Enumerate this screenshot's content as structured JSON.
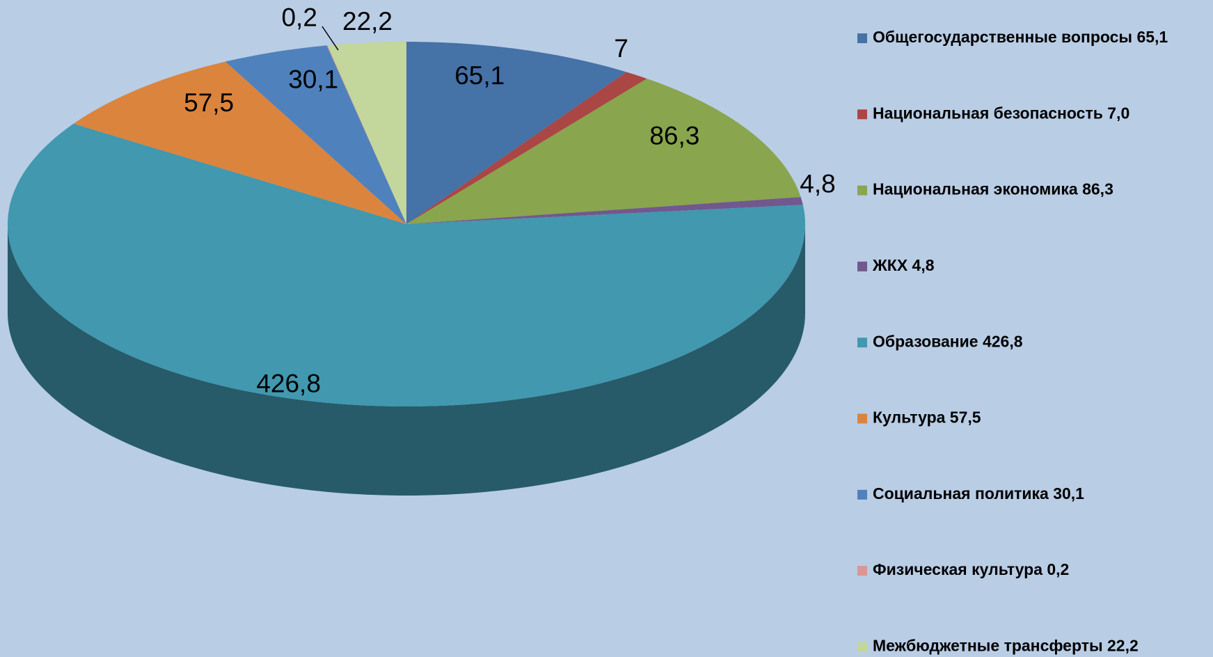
{
  "chart_data": {
    "type": "pie",
    "categories": [
      "Общегосударственные вопросы 65,1",
      "Национальная безопасность 7,0",
      "Национальная экономика 86,3",
      "ЖКХ 4,8",
      "Образование 426,8",
      "Культура 57,5",
      "Социальная политика 30,1",
      "Физическая культура 0,2",
      "Межбюджетные трансферты 22,2"
    ],
    "values": [
      65.1,
      7,
      86.3,
      4.8,
      426.8,
      57.5,
      30.1,
      0.2,
      22.2
    ],
    "value_labels": [
      "65,1",
      "7",
      "86,3",
      "4,8",
      "426,8",
      "57,5",
      "30,1",
      "0,2",
      "22,2"
    ],
    "colors": [
      "#4572a7",
      "#aa4643",
      "#89a54e",
      "#71588f",
      "#4198af",
      "#db843d",
      "#4f81bd",
      "#d99694",
      "#c3d69b"
    ],
    "legend": "right"
  }
}
